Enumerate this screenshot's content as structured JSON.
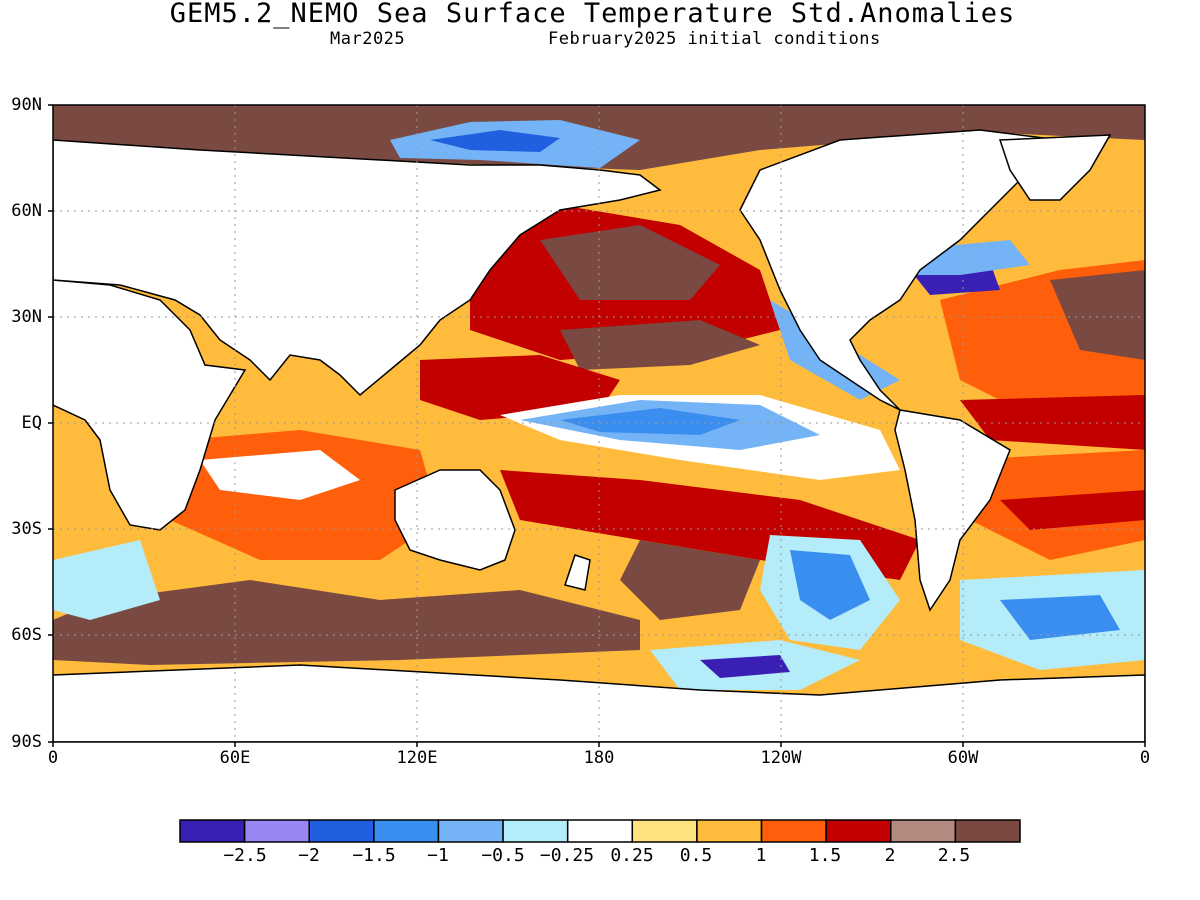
{
  "title": "GEM5.2_NEMO Sea Surface Temperature Std.Anomalies",
  "subtitle_left": "Mar2025",
  "subtitle_right": "February2025 initial conditions",
  "lat_labels": [
    "90N",
    "60N",
    "30N",
    "EQ",
    "30S",
    "60S",
    "90S"
  ],
  "lon_labels": [
    "0",
    "60E",
    "120E",
    "180",
    "120W",
    "60W",
    "0"
  ],
  "colorbar": {
    "colors": [
      "#3a1fb5",
      "#9a86f2",
      "#1f5fe0",
      "#3a8ef0",
      "#74b4f6",
      "#b4ecfa",
      "#ffffff",
      "#ffe27e",
      "#ffbb3b",
      "#ff5f0a",
      "#c20000",
      "#b28a80",
      "#7a4a42"
    ],
    "labels": [
      "−2.5",
      "−2",
      "−1.5",
      "−1",
      "−0.5",
      "−0.25",
      "0.25",
      "0.5",
      "1",
      "1.5",
      "2",
      "2.5"
    ]
  }
}
